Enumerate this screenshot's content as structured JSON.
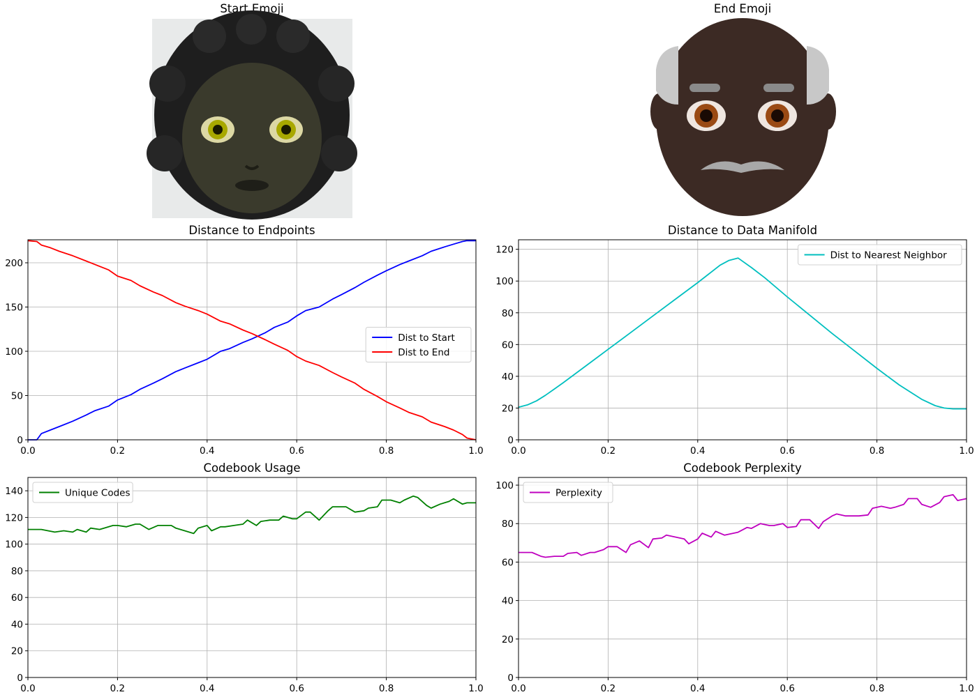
{
  "images": {
    "start": {
      "title": "Start Emoji",
      "icon": "woman-curly-hair-dark-skin-emoji"
    },
    "end": {
      "title": "End Emoji",
      "icon": "old-man-dark-skin-emoji"
    }
  },
  "chart_data": [
    {
      "id": "endpoints",
      "type": "line",
      "title": "Distance to Endpoints",
      "xlabel": "",
      "ylabel": "",
      "xlim": [
        0,
        1.0
      ],
      "ylim": [
        0,
        226
      ],
      "xticks": [
        0.0,
        0.2,
        0.4,
        0.6,
        0.8,
        1.0
      ],
      "yticks": [
        0,
        50,
        100,
        150,
        200
      ],
      "grid": true,
      "legend": "center-right",
      "series": [
        {
          "name": "Dist to Start",
          "color": "#0000ff",
          "x": [
            0.0,
            0.02,
            0.03,
            0.05,
            0.07,
            0.1,
            0.13,
            0.15,
            0.18,
            0.2,
            0.23,
            0.25,
            0.28,
            0.3,
            0.33,
            0.35,
            0.38,
            0.4,
            0.43,
            0.45,
            0.48,
            0.5,
            0.53,
            0.55,
            0.58,
            0.6,
            0.62,
            0.65,
            0.68,
            0.7,
            0.73,
            0.75,
            0.78,
            0.8,
            0.83,
            0.85,
            0.88,
            0.9,
            0.93,
            0.95,
            0.97,
            0.98,
            1.0
          ],
          "y": [
            0,
            0,
            7,
            11,
            15,
            21,
            28,
            33,
            38,
            45,
            51,
            57,
            64,
            69,
            77,
            81,
            87,
            91,
            100,
            103,
            110,
            114,
            121,
            127,
            133,
            140,
            146,
            150,
            159,
            164,
            172,
            178,
            186,
            191,
            198,
            202,
            208,
            213,
            218,
            221,
            224,
            225,
            225
          ]
        },
        {
          "name": "Dist to End",
          "color": "#ff0000",
          "x": [
            0.0,
            0.02,
            0.03,
            0.05,
            0.07,
            0.1,
            0.13,
            0.15,
            0.18,
            0.2,
            0.23,
            0.25,
            0.28,
            0.3,
            0.33,
            0.35,
            0.38,
            0.4,
            0.43,
            0.45,
            0.48,
            0.5,
            0.53,
            0.55,
            0.58,
            0.6,
            0.62,
            0.65,
            0.68,
            0.7,
            0.73,
            0.75,
            0.78,
            0.8,
            0.83,
            0.85,
            0.88,
            0.9,
            0.93,
            0.95,
            0.97,
            0.98,
            1.0
          ],
          "y": [
            225,
            224,
            220,
            217,
            213,
            208,
            202,
            198,
            192,
            185,
            180,
            174,
            167,
            163,
            155,
            151,
            146,
            142,
            134,
            131,
            124,
            120,
            113,
            108,
            101,
            94,
            89,
            84,
            76,
            71,
            64,
            57,
            49,
            43,
            36,
            31,
            26,
            20,
            15,
            11,
            6,
            2,
            0
          ]
        }
      ]
    },
    {
      "id": "manifold",
      "type": "line",
      "title": "Distance to Data Manifold",
      "xlabel": "",
      "ylabel": "",
      "xlim": [
        0,
        1.0
      ],
      "ylim": [
        0,
        126
      ],
      "xticks": [
        0.0,
        0.2,
        0.4,
        0.6,
        0.8,
        1.0
      ],
      "yticks": [
        0,
        20,
        40,
        60,
        80,
        100,
        120
      ],
      "grid": true,
      "legend": "top-right",
      "series": [
        {
          "name": "Dist to Nearest Neighbor",
          "color": "#00bfbf",
          "x": [
            0.0,
            0.02,
            0.04,
            0.06,
            0.08,
            0.1,
            0.15,
            0.2,
            0.25,
            0.3,
            0.35,
            0.4,
            0.45,
            0.47,
            0.49,
            0.52,
            0.55,
            0.6,
            0.65,
            0.7,
            0.75,
            0.8,
            0.85,
            0.9,
            0.93,
            0.95,
            0.97,
            0.99,
            1.0
          ],
          "y": [
            20.5,
            22,
            24.5,
            28,
            32,
            36,
            46.5,
            57,
            67.5,
            78,
            88.5,
            99,
            110,
            113,
            114.5,
            108.5,
            102,
            90,
            78.5,
            67,
            56,
            45,
            34.5,
            25.5,
            21.5,
            20,
            19.5,
            19.5,
            19.5
          ]
        }
      ]
    },
    {
      "id": "usage",
      "type": "line",
      "title": "Codebook Usage",
      "xlabel": "",
      "ylabel": "",
      "xlim": [
        0,
        1.0
      ],
      "ylim": [
        0,
        150
      ],
      "xticks": [
        0.0,
        0.2,
        0.4,
        0.6,
        0.8,
        1.0
      ],
      "yticks": [
        0,
        20,
        40,
        60,
        80,
        100,
        120,
        140
      ],
      "grid": true,
      "legend": "top-left",
      "series": [
        {
          "name": "Unique Codes",
          "color": "#008000",
          "x": [
            0.0,
            0.03,
            0.06,
            0.08,
            0.1,
            0.11,
            0.13,
            0.14,
            0.16,
            0.17,
            0.19,
            0.2,
            0.22,
            0.24,
            0.25,
            0.27,
            0.29,
            0.3,
            0.32,
            0.33,
            0.35,
            0.37,
            0.38,
            0.4,
            0.41,
            0.43,
            0.44,
            0.46,
            0.48,
            0.49,
            0.51,
            0.52,
            0.54,
            0.56,
            0.57,
            0.59,
            0.6,
            0.62,
            0.63,
            0.65,
            0.67,
            0.68,
            0.7,
            0.71,
            0.73,
            0.75,
            0.76,
            0.78,
            0.79,
            0.81,
            0.83,
            0.84,
            0.86,
            0.87,
            0.89,
            0.9,
            0.92,
            0.94,
            0.95,
            0.97,
            0.98,
            1.0
          ],
          "y": [
            111,
            111,
            109,
            110,
            109,
            111,
            109,
            112,
            111,
            112,
            114,
            114,
            113,
            115,
            115,
            111,
            114,
            114,
            114,
            112,
            110,
            108,
            112,
            114,
            110,
            113,
            113,
            114,
            115,
            118,
            114,
            117,
            118,
            118,
            121,
            119,
            119,
            124,
            124,
            118,
            125,
            128,
            128,
            128,
            124,
            125,
            127,
            128,
            133,
            133,
            131,
            133,
            136,
            135,
            129,
            127,
            130,
            132,
            134,
            130,
            131,
            131
          ]
        }
      ]
    },
    {
      "id": "perplexity",
      "type": "line",
      "title": "Codebook Perplexity",
      "xlabel": "",
      "ylabel": "",
      "xlim": [
        0,
        1.0
      ],
      "ylim": [
        0,
        104
      ],
      "xticks": [
        0.0,
        0.2,
        0.4,
        0.6,
        0.8,
        1.0
      ],
      "yticks": [
        0,
        20,
        40,
        60,
        80,
        100
      ],
      "grid": true,
      "legend": "top-left",
      "series": [
        {
          "name": "Perplexity",
          "color": "#bf00bf",
          "x": [
            0.0,
            0.03,
            0.05,
            0.06,
            0.08,
            0.1,
            0.11,
            0.13,
            0.14,
            0.16,
            0.17,
            0.19,
            0.2,
            0.22,
            0.24,
            0.25,
            0.27,
            0.29,
            0.3,
            0.32,
            0.33,
            0.35,
            0.37,
            0.38,
            0.4,
            0.41,
            0.43,
            0.44,
            0.46,
            0.48,
            0.49,
            0.51,
            0.52,
            0.54,
            0.56,
            0.57,
            0.59,
            0.6,
            0.62,
            0.63,
            0.65,
            0.67,
            0.68,
            0.7,
            0.71,
            0.73,
            0.75,
            0.76,
            0.78,
            0.79,
            0.81,
            0.83,
            0.84,
            0.86,
            0.87,
            0.89,
            0.9,
            0.92,
            0.94,
            0.95,
            0.97,
            0.98,
            1.0
          ],
          "y": [
            65,
            65,
            63,
            62.5,
            63,
            63,
            64.5,
            65,
            63.5,
            65,
            65,
            66.5,
            68,
            68,
            65,
            69,
            71,
            67.5,
            72,
            72.5,
            74,
            73,
            72,
            69.5,
            72,
            75,
            73,
            76,
            74,
            75,
            75.5,
            78,
            77.5,
            80,
            79,
            79,
            80,
            78,
            78.5,
            82,
            82,
            77.5,
            81,
            84,
            85,
            84,
            84,
            84,
            84.5,
            88,
            89,
            88,
            88.5,
            90,
            93,
            93,
            90,
            88.5,
            91,
            94,
            95,
            92,
            93
          ]
        }
      ]
    }
  ]
}
